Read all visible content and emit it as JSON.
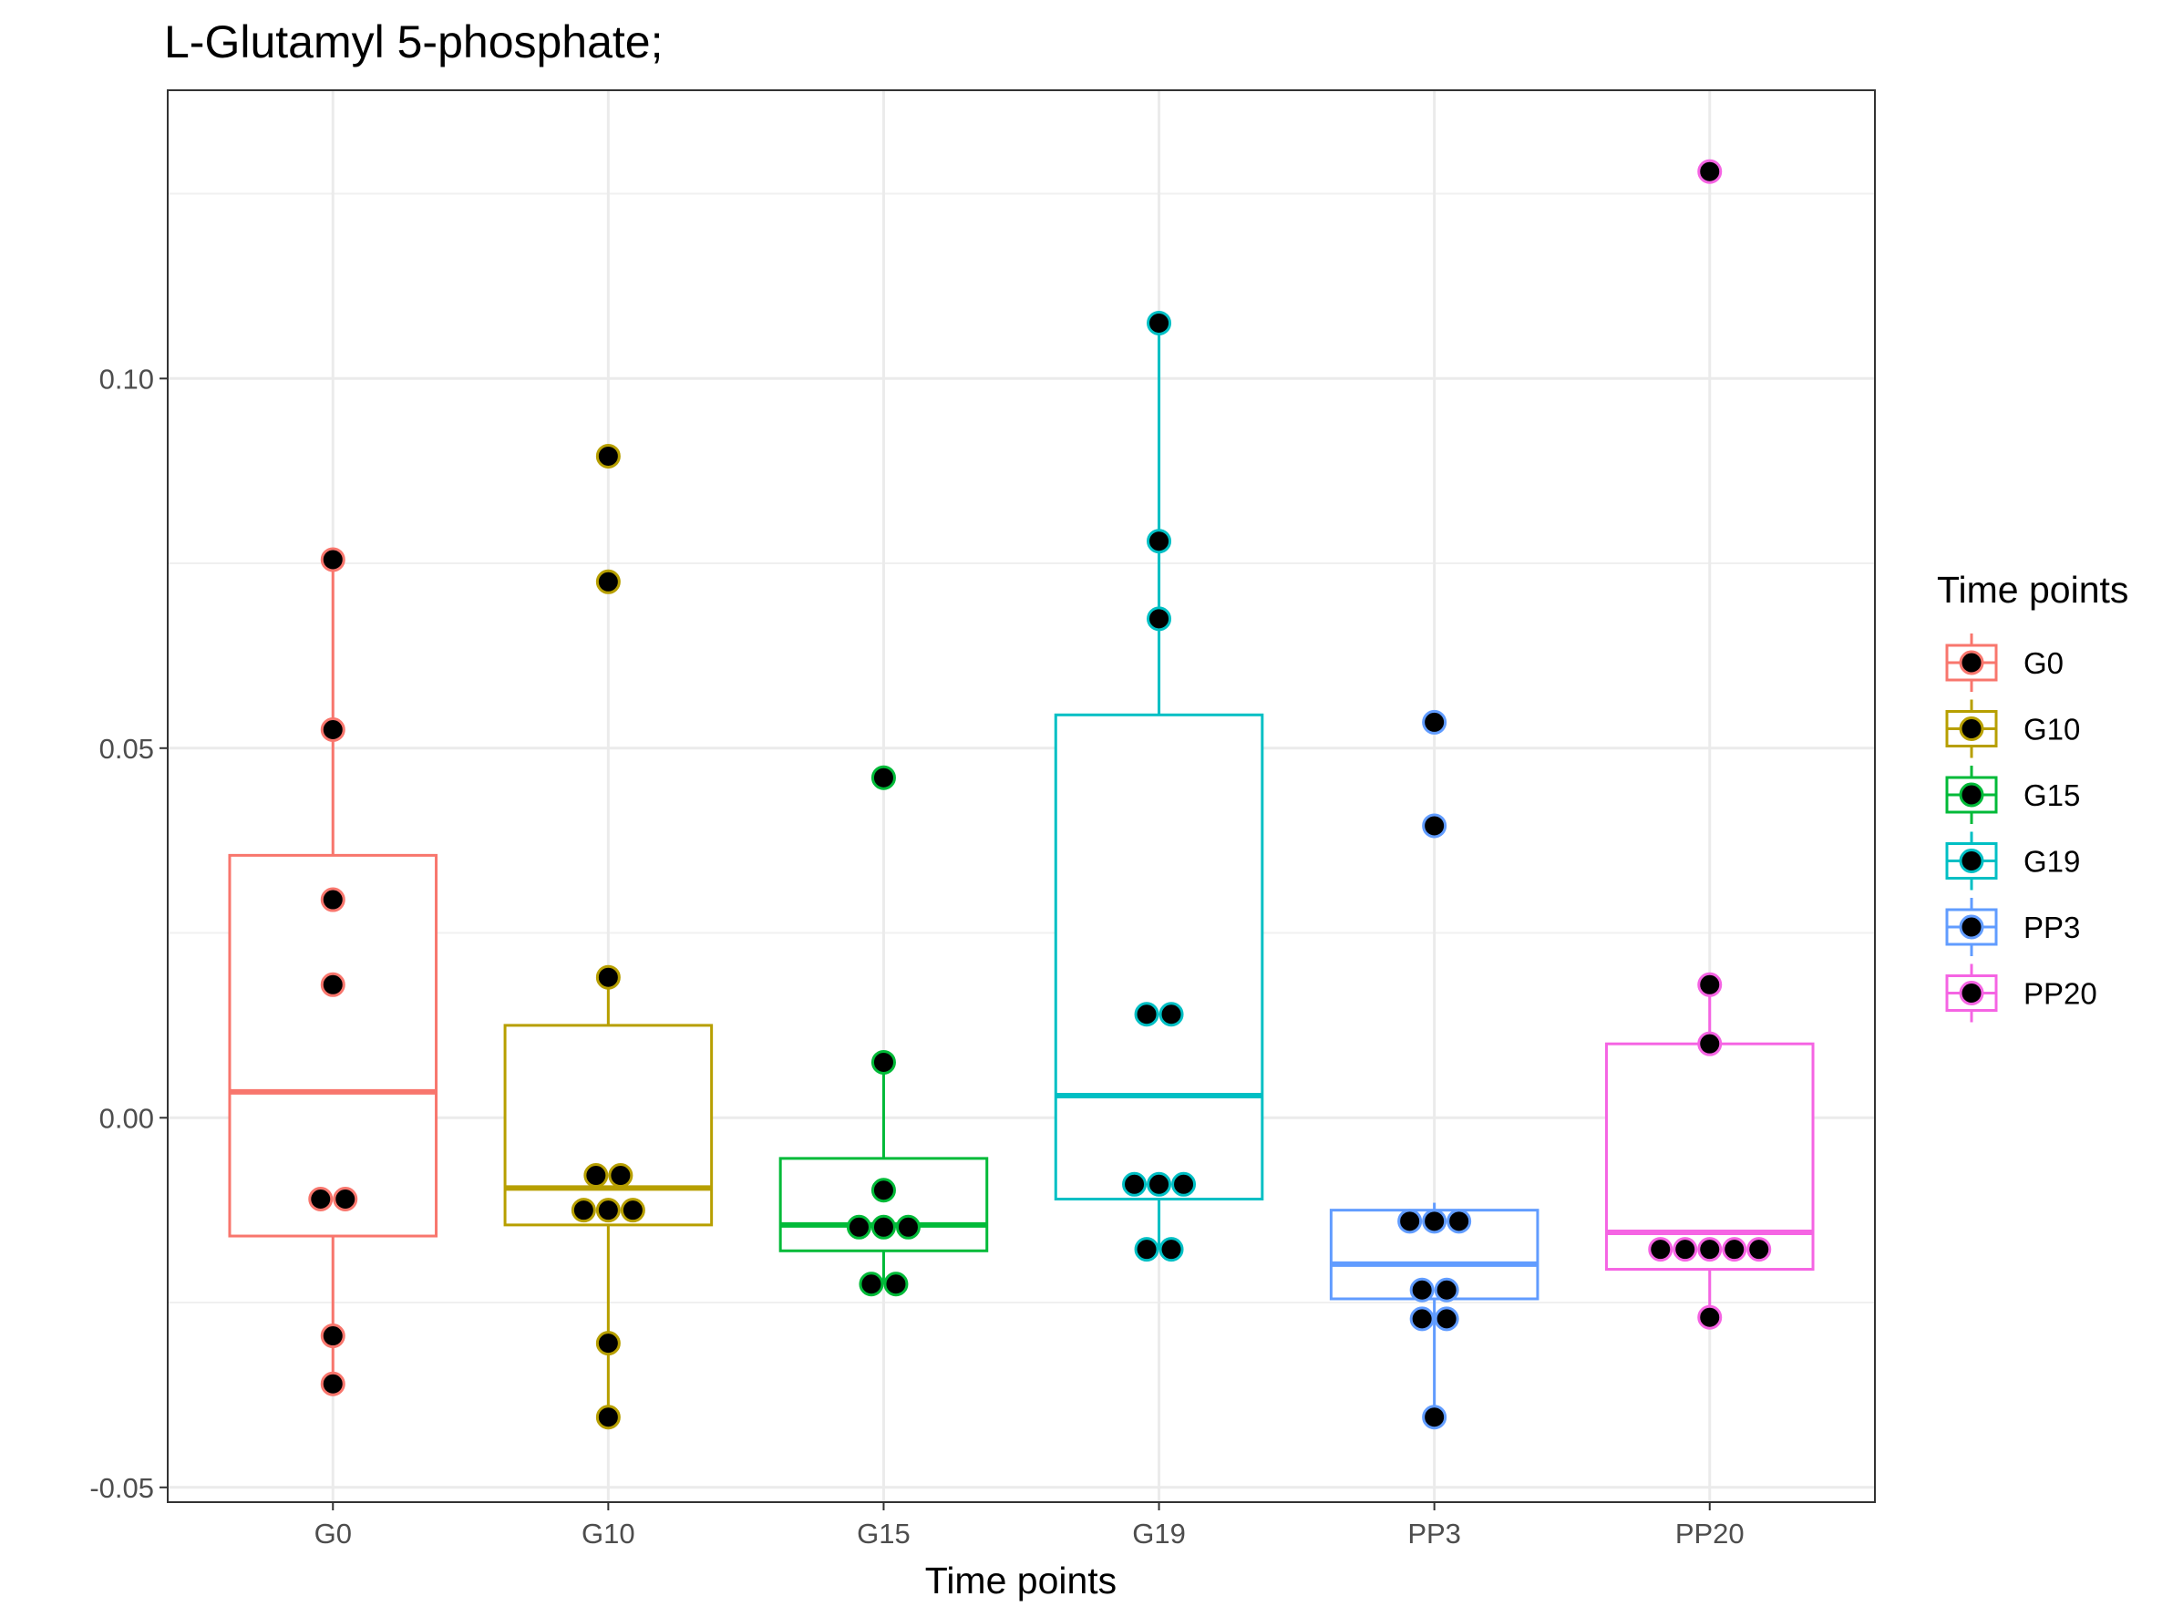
{
  "chart_data": {
    "type": "box",
    "title": "L-Glutamyl 5-phosphate;",
    "xlabel": "Time points",
    "ylabel": "",
    "ylim": [
      -0.052,
      0.139
    ],
    "yticks": [
      -0.05,
      0.0,
      0.05,
      0.1
    ],
    "ytick_labels": [
      "-0.05",
      "0.00",
      "0.05",
      "0.10"
    ],
    "minor_yticks": [
      -0.025,
      0.025,
      0.075,
      0.125
    ],
    "grid": true,
    "legend": {
      "title": "Time points",
      "placement": "right"
    },
    "categories": [
      "G0",
      "G10",
      "G15",
      "G19",
      "PP3",
      "PP20"
    ],
    "series": [
      {
        "name": "G0",
        "color": "#F8766D",
        "box": {
          "q1": -0.016,
          "median": 0.0035,
          "q3": 0.0355,
          "whisker_low": -0.036,
          "whisker_high": 0.0755
        },
        "points": [
          0.0755,
          0.0525,
          0.0295,
          0.018,
          -0.011,
          -0.011,
          -0.0295,
          -0.036
        ]
      },
      {
        "name": "G10",
        "color": "#B79F00",
        "box": {
          "q1": -0.0145,
          "median": -0.0095,
          "q3": 0.0125,
          "whisker_low": -0.0405,
          "whisker_high": 0.019
        },
        "points": [
          0.0895,
          0.0725,
          0.019,
          -0.0078,
          -0.0078,
          -0.0125,
          -0.0125,
          -0.0125,
          -0.0305,
          -0.0405
        ]
      },
      {
        "name": "G15",
        "color": "#00BA38",
        "box": {
          "q1": -0.018,
          "median": -0.0145,
          "q3": -0.0055,
          "whisker_low": -0.0225,
          "whisker_high": 0.0075
        },
        "points": [
          0.046,
          0.0075,
          -0.0098,
          -0.0148,
          -0.0148,
          -0.0148,
          -0.0225,
          -0.0225
        ]
      },
      {
        "name": "G19",
        "color": "#00BFC4",
        "box": {
          "q1": -0.011,
          "median": 0.003,
          "q3": 0.0545,
          "whisker_low": -0.0178,
          "whisker_high": 0.1075
        },
        "points": [
          0.1075,
          0.078,
          0.0675,
          0.014,
          0.014,
          -0.009,
          -0.009,
          -0.009,
          -0.0178,
          -0.0178
        ]
      },
      {
        "name": "PP3",
        "color": "#619CFF",
        "box": {
          "q1": -0.0245,
          "median": -0.0198,
          "q3": -0.0125,
          "whisker_low": -0.0405,
          "whisker_high": -0.0115
        },
        "points": [
          0.0535,
          0.0395,
          -0.014,
          -0.014,
          -0.014,
          -0.0233,
          -0.0233,
          -0.0272,
          -0.0272,
          -0.0405
        ]
      },
      {
        "name": "PP20",
        "color": "#F564E3",
        "box": {
          "q1": -0.0205,
          "median": -0.0155,
          "q3": 0.01,
          "whisker_low": -0.027,
          "whisker_high": 0.018
        },
        "points": [
          0.128,
          0.018,
          0.01,
          -0.0178,
          -0.0178,
          -0.0178,
          -0.0178,
          -0.0178,
          -0.027
        ]
      }
    ]
  }
}
